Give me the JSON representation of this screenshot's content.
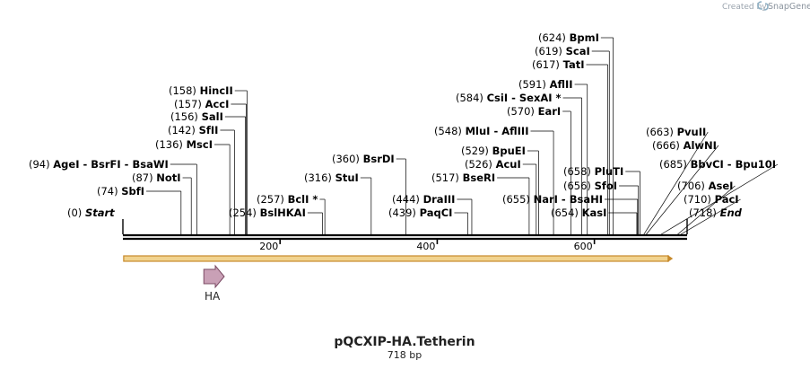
{
  "header": {
    "created_by": "Created by",
    "brand": "SnapGene"
  },
  "map": {
    "title": "pQCXIP-HA.Tetherin",
    "length": "718 bp",
    "total_bp": 718,
    "ticks": [
      {
        "bp": 200,
        "label": "200"
      },
      {
        "bp": 400,
        "label": "400"
      },
      {
        "bp": 600,
        "label": "600"
      }
    ],
    "features": [
      {
        "name": "HA",
        "start": 103,
        "end": 129,
        "color": "#c9a0b6",
        "stroke": "#7a4a63"
      }
    ],
    "orf": {
      "start": 1,
      "end": 700,
      "fill": "#f1d38f",
      "stroke": "#c78a2c"
    }
  },
  "sites": [
    {
      "pos": "(0)",
      "name": "Start",
      "italic": true,
      "bp": 0
    },
    {
      "pos": "(74)",
      "name": "SbfI",
      "bp": 74
    },
    {
      "pos": "(87)",
      "name": "NotI",
      "bp": 87
    },
    {
      "pos": "(94)",
      "name": "AgeI  -  BsrFI  -  BsaWI",
      "bp": 94
    },
    {
      "pos": "(136)",
      "name": "MscI",
      "bp": 136
    },
    {
      "pos": "(142)",
      "name": "SfII",
      "bp": 142
    },
    {
      "pos": "(156)",
      "name": "SalI",
      "bp": 156
    },
    {
      "pos": "(157)",
      "name": "AccI",
      "bp": 157
    },
    {
      "pos": "(158)",
      "name": "HincII",
      "bp": 158
    },
    {
      "pos": "(254)",
      "name": "BslHKAI",
      "bp": 254
    },
    {
      "pos": "(257)",
      "name": "BclI *",
      "bp": 257
    },
    {
      "pos": "(316)",
      "name": "StuI",
      "bp": 316
    },
    {
      "pos": "(360)",
      "name": "BsrDI",
      "bp": 360
    },
    {
      "pos": "(439)",
      "name": "PaqCI",
      "bp": 439
    },
    {
      "pos": "(444)",
      "name": "DraIII",
      "bp": 444
    },
    {
      "pos": "(548)",
      "name": "MluI  -  AflIII",
      "bp": 548
    },
    {
      "pos": "(517)",
      "name": "BseRI",
      "bp": 517
    },
    {
      "pos": "(526)",
      "name": "AcuI",
      "bp": 526
    },
    {
      "pos": "(529)",
      "name": "BpuEI",
      "bp": 529
    },
    {
      "pos": "(570)",
      "name": "EarI",
      "bp": 570
    },
    {
      "pos": "(584)",
      "name": "CsiI  -  SexAI *",
      "bp": 584
    },
    {
      "pos": "(591)",
      "name": "AflII",
      "bp": 591
    },
    {
      "pos": "(617)",
      "name": "TatI",
      "bp": 617
    },
    {
      "pos": "(619)",
      "name": "ScaI",
      "bp": 619
    },
    {
      "pos": "(624)",
      "name": "BpmI",
      "bp": 624
    },
    {
      "pos": "(655)",
      "name": "NarI  -  BsaHI",
      "bp": 655
    },
    {
      "pos": "(654)",
      "name": "KasI",
      "bp": 654
    },
    {
      "pos": "(656)",
      "name": "SfoI",
      "bp": 656
    },
    {
      "pos": "(658)",
      "name": "PluTI",
      "bp": 658
    },
    {
      "pos": "(663)",
      "name": "PvuII",
      "bp": 663
    },
    {
      "pos": "(666)",
      "name": "AlwNI",
      "bp": 666
    },
    {
      "pos": "(685)",
      "name": "BbvCI  -  Bpu10I",
      "bp": 685
    },
    {
      "pos": "(706)",
      "name": "AseI",
      "bp": 706
    },
    {
      "pos": "(710)",
      "name": "PacI",
      "bp": 710
    },
    {
      "pos": "(718)",
      "name": "End",
      "italic": true,
      "bp": 718
    }
  ]
}
